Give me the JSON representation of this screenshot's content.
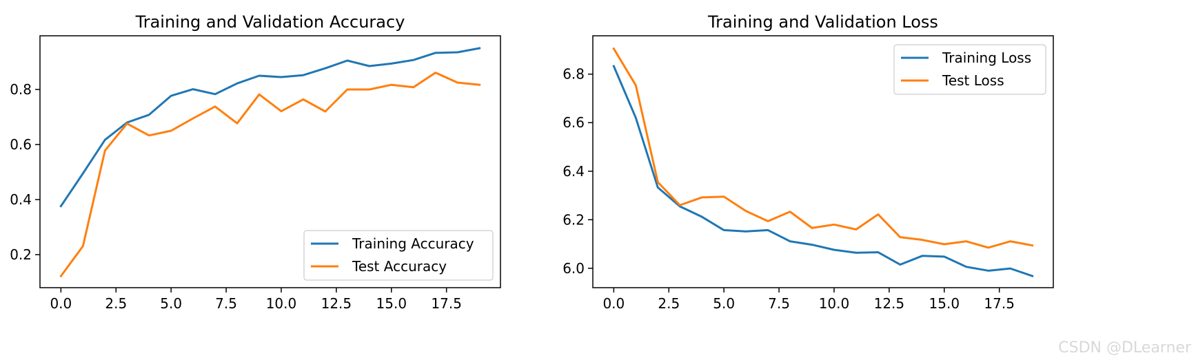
{
  "chart_data": [
    {
      "type": "line",
      "title": "Training and Validation Accuracy",
      "xlabel": "",
      "ylabel": "",
      "x": [
        0,
        1,
        2,
        3,
        4,
        5,
        6,
        7,
        8,
        9,
        10,
        11,
        12,
        13,
        14,
        15,
        16,
        17,
        18,
        19
      ],
      "xlim": [
        -0.95,
        19.95
      ],
      "ylim": [
        0.08,
        0.995
      ],
      "xticks": [
        0,
        2.5,
        5,
        7.5,
        10,
        12.5,
        15,
        17.5
      ],
      "xtick_labels": [
        "0.0",
        "2.5",
        "5.0",
        "7.5",
        "10.0",
        "12.5",
        "15.0",
        "17.5"
      ],
      "yticks": [
        0.2,
        0.4,
        0.6,
        0.8
      ],
      "ytick_labels": [
        "0.2",
        "0.4",
        "0.6",
        "0.8"
      ],
      "legend_position": "lower-right",
      "grid": false,
      "series": [
        {
          "name": "Training Accuracy",
          "color": "#1f77b4",
          "values": [
            0.376,
            0.495,
            0.617,
            0.68,
            0.708,
            0.777,
            0.801,
            0.783,
            0.822,
            0.85,
            0.845,
            0.852,
            0.877,
            0.905,
            0.885,
            0.894,
            0.907,
            0.933,
            0.935,
            0.95
          ]
        },
        {
          "name": "Test Accuracy",
          "color": "#ff7f0e",
          "values": [
            0.122,
            0.231,
            0.578,
            0.676,
            0.633,
            0.65,
            0.695,
            0.738,
            0.677,
            0.782,
            0.721,
            0.764,
            0.72,
            0.8,
            0.8,
            0.817,
            0.808,
            0.861,
            0.825,
            0.817
          ]
        }
      ]
    },
    {
      "type": "line",
      "title": "Training and Validation Loss",
      "xlabel": "",
      "ylabel": "",
      "x": [
        0,
        1,
        2,
        3,
        4,
        5,
        6,
        7,
        8,
        9,
        10,
        11,
        12,
        13,
        14,
        15,
        16,
        17,
        18,
        19
      ],
      "xlim": [
        -0.95,
        19.95
      ],
      "ylim": [
        5.92,
        6.958
      ],
      "xticks": [
        0,
        2.5,
        5,
        7.5,
        10,
        12.5,
        15,
        17.5
      ],
      "xtick_labels": [
        "0.0",
        "2.5",
        "5.0",
        "7.5",
        "10.0",
        "12.5",
        "15.0",
        "17.5"
      ],
      "yticks": [
        6.0,
        6.2,
        6.4,
        6.6,
        6.8
      ],
      "ytick_labels": [
        "6.0",
        "6.2",
        "6.4",
        "6.6",
        "6.8"
      ],
      "legend_position": "upper-right",
      "grid": false,
      "series": [
        {
          "name": "Training Loss",
          "color": "#1f77b4",
          "values": [
            6.833,
            6.62,
            6.333,
            6.255,
            6.212,
            6.157,
            6.152,
            6.157,
            6.111,
            6.097,
            6.076,
            6.064,
            6.066,
            6.015,
            6.051,
            6.048,
            6.006,
            5.99,
            5.999,
            5.968
          ]
        },
        {
          "name": "Test Loss",
          "color": "#ff7f0e",
          "values": [
            6.905,
            6.754,
            6.355,
            6.26,
            6.292,
            6.295,
            6.236,
            6.194,
            6.233,
            6.166,
            6.18,
            6.16,
            6.222,
            6.128,
            6.117,
            6.099,
            6.111,
            6.085,
            6.111,
            6.094
          ]
        }
      ]
    }
  ],
  "watermark": "CSDN @DLearner"
}
